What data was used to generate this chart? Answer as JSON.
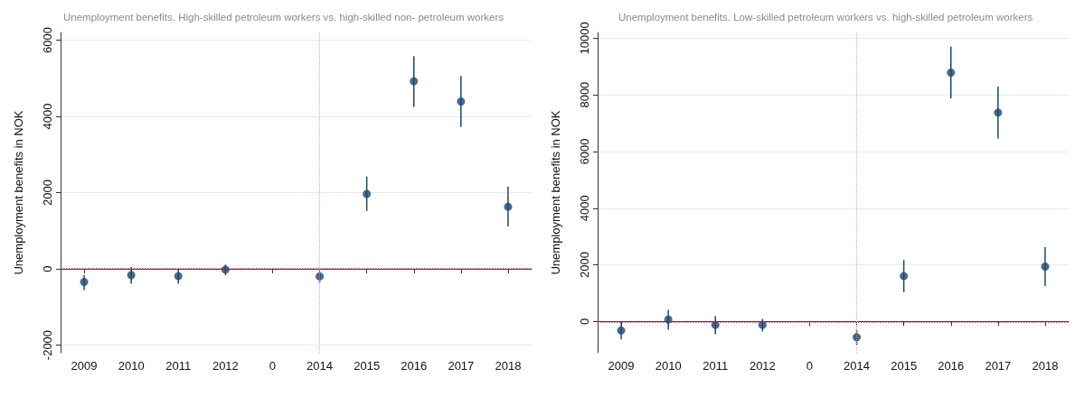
{
  "chart_data": [
    {
      "type": "scatter",
      "title": "Unemployment benefits. High-skilled petroleum workers vs. high-skilled non- petroleum workers",
      "ylabel": "Unemployment benefits in NOK",
      "categories": [
        "2009",
        "2010",
        "2011",
        "2012",
        "0",
        "2014",
        "2015",
        "2016",
        "2017",
        "2018"
      ],
      "series": [
        {
          "color": "#1a476f",
          "values": [
            -345,
            -165,
            -190,
            -20,
            null,
            -200,
            1965,
            4920,
            4390,
            1630
          ],
          "errors": [
            [
              -555,
              -165
            ],
            [
              -390,
              45
            ],
            [
              -390,
              0
            ],
            [
              -165,
              110
            ],
            null,
            [
              -365,
              -75
            ],
            [
              1520,
              2420
            ],
            [
              4250,
              5580
            ],
            [
              3720,
              5060
            ],
            [
              1110,
              2160
            ]
          ]
        }
      ],
      "ylim": [
        -2200,
        6200
      ],
      "yticks": [
        -2000,
        0,
        2000,
        4000,
        6000
      ],
      "grid": "y",
      "marker": "circle",
      "ref_lines": [
        {
          "axis": "y",
          "value": 0,
          "color": "#c8204e",
          "line_style": "dotted"
        },
        {
          "axis": "x",
          "value": "2014",
          "color": "#eaa0b4",
          "line_style": "dotted"
        }
      ]
    },
    {
      "type": "scatter",
      "title": "Unemployment benefits. Low-skilled petroleum workers vs. high-skilled petroleum workers",
      "ylabel": "Unemployment benefits in NOK",
      "categories": [
        "2009",
        "2010",
        "2011",
        "2012",
        "0",
        "2014",
        "2015",
        "2016",
        "2017",
        "2018"
      ],
      "series": [
        {
          "color": "#1a476f",
          "values": [
            -313,
            72,
            -120,
            -120,
            null,
            -554,
            1602,
            8783,
            7373,
            1940
          ],
          "errors": [
            [
              -627,
              0
            ],
            [
              -290,
              410
            ],
            [
              -446,
              193
            ],
            [
              -350,
              96
            ],
            null,
            [
              -831,
              -290
            ],
            [
              1036,
              2170
            ],
            [
              7880,
              9700
            ],
            [
              6458,
              8289
            ],
            [
              1253,
              2627
            ]
          ]
        }
      ],
      "ylim": [
        -1100,
        10200
      ],
      "yticks": [
        0,
        2000,
        4000,
        6000,
        8000,
        10000
      ],
      "grid": "y",
      "marker": "circle",
      "ref_lines": [
        {
          "axis": "y",
          "value": 0,
          "color": "#c8204e",
          "line_style": "dotted"
        },
        {
          "axis": "x",
          "value": "2014",
          "color": "#eaa0b4",
          "line_style": "dotted"
        }
      ]
    }
  ]
}
